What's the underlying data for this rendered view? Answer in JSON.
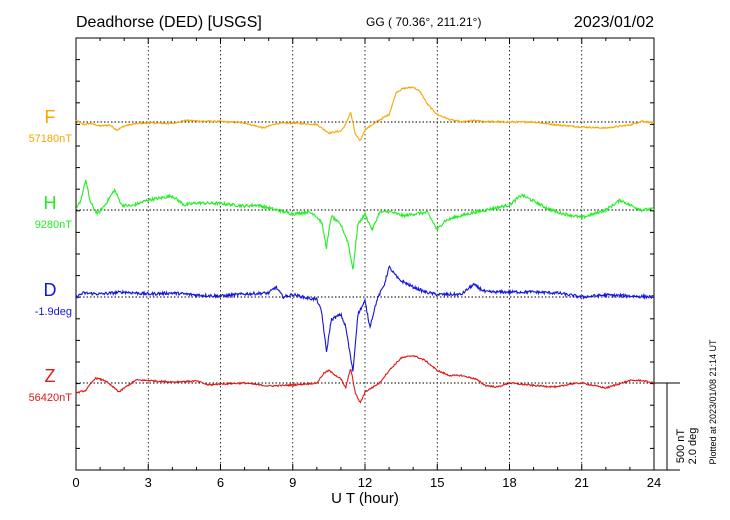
{
  "header": {
    "station": "Deadhorse (DED)  [USGS]",
    "coords": "GG ( 70.36°, 211.21°)",
    "date": "2023/01/02"
  },
  "chart_data": {
    "type": "line",
    "xlabel": "U T (hour)",
    "xlim": [
      0,
      24
    ],
    "x_ticks": [
      "0",
      "3",
      "6",
      "9",
      "12",
      "15",
      "18",
      "21",
      "24"
    ],
    "scale_bar": {
      "nt_label": "500 nT",
      "deg_label": "2.0 deg"
    },
    "footer": "Plotted at 2023/01/08 21:14 UT",
    "series": [
      {
        "name": "F",
        "baseline_label": "57180nT",
        "color": "#f5a800",
        "points": [
          [
            0,
            3
          ],
          [
            0.3,
            -5
          ],
          [
            0.6,
            -3
          ],
          [
            1.0,
            -8
          ],
          [
            1.4,
            -6
          ],
          [
            1.7,
            -16
          ],
          [
            2.0,
            -8
          ],
          [
            2.5,
            -3
          ],
          [
            3,
            -2
          ],
          [
            4,
            -3
          ],
          [
            4.5,
            3
          ],
          [
            5,
            2
          ],
          [
            6,
            1
          ],
          [
            7,
            -2
          ],
          [
            7.8,
            -12
          ],
          [
            8.3,
            -3
          ],
          [
            9,
            -2
          ],
          [
            10,
            -5
          ],
          [
            10.5,
            -22
          ],
          [
            11,
            -18
          ],
          [
            11.2,
            -5
          ],
          [
            11.4,
            20
          ],
          [
            11.6,
            -25
          ],
          [
            11.8,
            -38
          ],
          [
            12,
            -15
          ],
          [
            12.6,
            4
          ],
          [
            13,
            15
          ],
          [
            13.3,
            60
          ],
          [
            13.6,
            67
          ],
          [
            14.0,
            70
          ],
          [
            14.3,
            60
          ],
          [
            14.6,
            35
          ],
          [
            15,
            15
          ],
          [
            15.5,
            5
          ],
          [
            16,
            0
          ],
          [
            16.5,
            3
          ],
          [
            17,
            1
          ],
          [
            18,
            0
          ],
          [
            19,
            0
          ],
          [
            20,
            -6
          ],
          [
            21,
            -10
          ],
          [
            22,
            -12
          ],
          [
            23,
            -6
          ],
          [
            23.5,
            2
          ],
          [
            24,
            -2
          ]
        ]
      },
      {
        "name": "H",
        "baseline_label": "9280nT",
        "color": "#22ee22",
        "points": [
          [
            0,
            0
          ],
          [
            0.2,
            20
          ],
          [
            0.4,
            60
          ],
          [
            0.6,
            15
          ],
          [
            0.9,
            -8
          ],
          [
            1.2,
            10
          ],
          [
            1.6,
            40
          ],
          [
            1.9,
            10
          ],
          [
            2.3,
            8
          ],
          [
            3,
            20
          ],
          [
            4,
            28
          ],
          [
            4.5,
            10
          ],
          [
            5,
            14
          ],
          [
            6,
            13
          ],
          [
            7,
            8
          ],
          [
            7.5,
            10
          ],
          [
            8.5,
            -2
          ],
          [
            9,
            -8
          ],
          [
            9.6,
            -4
          ],
          [
            9.9,
            -8
          ],
          [
            10.2,
            -25
          ],
          [
            10.4,
            -75
          ],
          [
            10.6,
            -12
          ],
          [
            11.0,
            -30
          ],
          [
            11.3,
            -65
          ],
          [
            11.5,
            -120
          ],
          [
            11.7,
            -30
          ],
          [
            12,
            -8
          ],
          [
            12.3,
            -40
          ],
          [
            12.6,
            -5
          ],
          [
            13,
            -3
          ],
          [
            13.6,
            -12
          ],
          [
            14,
            -8
          ],
          [
            14.6,
            -5
          ],
          [
            15,
            -40
          ],
          [
            15.3,
            -22
          ],
          [
            15.7,
            -15
          ],
          [
            16.5,
            -5
          ],
          [
            17,
            0
          ],
          [
            17.5,
            5
          ],
          [
            18,
            10
          ],
          [
            18.5,
            30
          ],
          [
            19,
            18
          ],
          [
            19.5,
            5
          ],
          [
            20,
            -5
          ],
          [
            21,
            -15
          ],
          [
            21.5,
            -8
          ],
          [
            22,
            0
          ],
          [
            22.6,
            20
          ],
          [
            23,
            10
          ],
          [
            23.5,
            0
          ],
          [
            24,
            2
          ]
        ]
      },
      {
        "name": "D",
        "baseline_label": "-1.9deg",
        "color": "#1515dd",
        "points": [
          [
            0,
            0
          ],
          [
            0.3,
            8
          ],
          [
            1,
            6
          ],
          [
            2,
            10
          ],
          [
            3,
            6
          ],
          [
            4,
            8
          ],
          [
            5,
            4
          ],
          [
            6,
            2
          ],
          [
            7,
            6
          ],
          [
            8,
            8
          ],
          [
            8.3,
            20
          ],
          [
            8.6,
            0
          ],
          [
            9,
            5
          ],
          [
            9.6,
            -2
          ],
          [
            10,
            -5
          ],
          [
            10.2,
            -30
          ],
          [
            10.4,
            -110
          ],
          [
            10.6,
            -45
          ],
          [
            11.0,
            -35
          ],
          [
            11.2,
            -60
          ],
          [
            11.4,
            -120
          ],
          [
            11.5,
            -150
          ],
          [
            11.7,
            -35
          ],
          [
            12,
            -8
          ],
          [
            12.2,
            -60
          ],
          [
            12.5,
            -5
          ],
          [
            12.8,
            25
          ],
          [
            13.0,
            60
          ],
          [
            13.4,
            35
          ],
          [
            14,
            20
          ],
          [
            14.5,
            10
          ],
          [
            15,
            5
          ],
          [
            16,
            5
          ],
          [
            16.5,
            25
          ],
          [
            17,
            10
          ],
          [
            18,
            10
          ],
          [
            19,
            10
          ],
          [
            20,
            8
          ],
          [
            21,
            0
          ],
          [
            22,
            4
          ],
          [
            23,
            2
          ],
          [
            24,
            0
          ]
        ]
      },
      {
        "name": "Z",
        "baseline_label": "56420nT",
        "color": "#e01818",
        "points": [
          [
            0,
            -20
          ],
          [
            0.4,
            -15
          ],
          [
            0.8,
            10
          ],
          [
            1.2,
            5
          ],
          [
            1.8,
            -18
          ],
          [
            2.0,
            -10
          ],
          [
            2.5,
            6
          ],
          [
            3,
            5
          ],
          [
            4,
            2
          ],
          [
            5,
            4
          ],
          [
            5.5,
            -4
          ],
          [
            6,
            -2
          ],
          [
            7,
            0
          ],
          [
            8,
            -6
          ],
          [
            9,
            -4
          ],
          [
            9.5,
            -2
          ],
          [
            10,
            0
          ],
          [
            10.3,
            20
          ],
          [
            10.5,
            25
          ],
          [
            11,
            8
          ],
          [
            11.2,
            -10
          ],
          [
            11.4,
            30
          ],
          [
            11.6,
            -20
          ],
          [
            11.8,
            -40
          ],
          [
            12,
            -18
          ],
          [
            12.6,
            0
          ],
          [
            13,
            25
          ],
          [
            13.5,
            50
          ],
          [
            14,
            55
          ],
          [
            14.5,
            45
          ],
          [
            15,
            25
          ],
          [
            15.5,
            15
          ],
          [
            16,
            15
          ],
          [
            16.6,
            8
          ],
          [
            17,
            -5
          ],
          [
            17.5,
            -8
          ],
          [
            18,
            0
          ],
          [
            19,
            -5
          ],
          [
            20,
            -8
          ],
          [
            20.5,
            -2
          ],
          [
            21,
            0
          ],
          [
            22,
            -10
          ],
          [
            23,
            5
          ],
          [
            23.5,
            5
          ],
          [
            24,
            0
          ]
        ]
      }
    ]
  }
}
